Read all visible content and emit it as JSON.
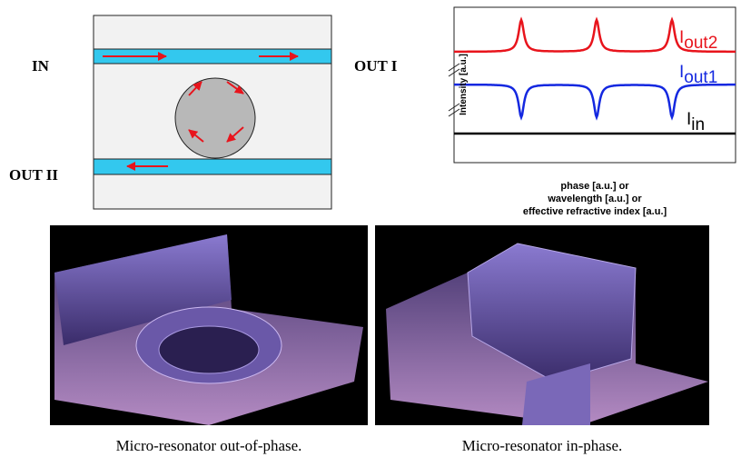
{
  "diagram": {
    "labels": {
      "in": "IN",
      "out1": "OUT I",
      "out2": "OUT II"
    }
  },
  "plot": {
    "y_axis": "Intensity [a.u.]",
    "x_axis": [
      "phase [a.u.] or",
      "wavelength [a.u.] or",
      "effective refractive index [a.u.]"
    ],
    "curves": [
      {
        "main": "I",
        "sub": "out2"
      },
      {
        "main": "I",
        "sub": "out1"
      },
      {
        "main": "I",
        "sub": "in"
      }
    ]
  },
  "images": [
    {
      "caption": "Micro-resonator out-of-phase."
    },
    {
      "caption": "Micro-resonator in-phase."
    }
  ]
}
